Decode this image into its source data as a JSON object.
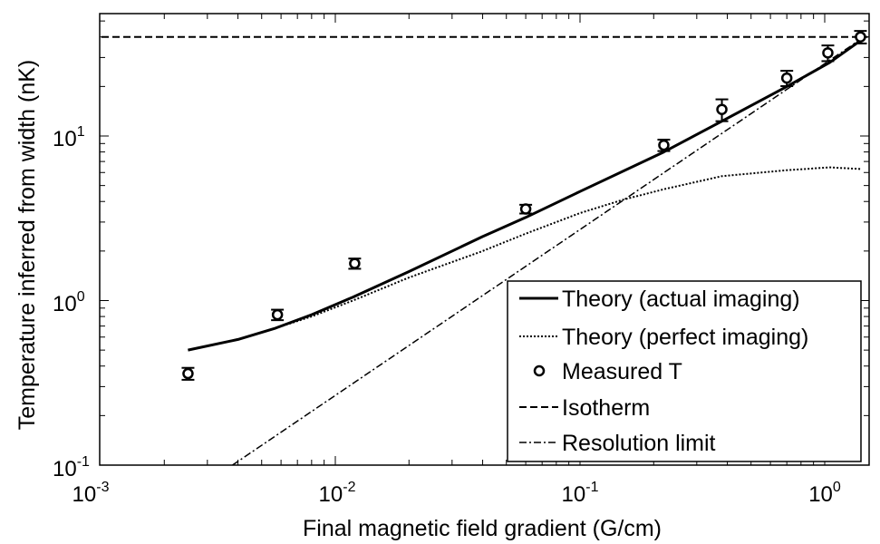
{
  "chart_data": {
    "type": "line",
    "xscale": "log",
    "yscale": "log",
    "xlim": [
      0.001,
      1.5
    ],
    "ylim": [
      0.1,
      45
    ],
    "xlabel": "Final magnetic field gradient (G/cm)",
    "ylabel": "Temperature inferred from width (nK)",
    "x_ticks": [
      {
        "base": "10",
        "exp": "-3",
        "value": 0.001
      },
      {
        "base": "10",
        "exp": "-2",
        "value": 0.01
      },
      {
        "base": "10",
        "exp": "-1",
        "value": 0.1
      },
      {
        "base": "10",
        "exp": "0",
        "value": 1
      }
    ],
    "y_ticks": [
      {
        "base": "10",
        "exp": "-1",
        "value": 0.1
      },
      {
        "base": "10",
        "exp": "0",
        "value": 1
      },
      {
        "base": "10",
        "exp": "1",
        "value": 10
      }
    ],
    "legend_position": "bottom-right",
    "series": [
      {
        "name": "Theory (actual imaging)",
        "style": "solid",
        "x": [
          0.0025,
          0.004,
          0.0057,
          0.008,
          0.0118,
          0.02,
          0.04,
          0.06,
          0.1,
          0.22,
          0.38,
          0.7,
          1.05,
          1.4
        ],
        "y": [
          0.5,
          0.58,
          0.68,
          0.82,
          1.05,
          1.5,
          2.45,
          3.2,
          4.6,
          8.0,
          12.3,
          20,
          28,
          38
        ]
      },
      {
        "name": "Theory (perfect imaging)",
        "style": "dotted",
        "x": [
          0.0057,
          0.008,
          0.0118,
          0.02,
          0.04,
          0.06,
          0.1,
          0.15,
          0.22,
          0.38,
          0.7,
          1.05,
          1.4
        ],
        "y": [
          0.68,
          0.8,
          1.0,
          1.38,
          2.0,
          2.55,
          3.4,
          4.1,
          4.75,
          5.7,
          6.2,
          6.45,
          6.3
        ]
      },
      {
        "name": "Measured T",
        "style": "markers",
        "x": [
          0.0025,
          0.0058,
          0.012,
          0.06,
          0.22,
          0.38,
          0.7,
          1.03,
          1.4
        ],
        "y": [
          0.36,
          0.82,
          1.68,
          3.6,
          8.8,
          14.5,
          22.5,
          32,
          40
        ],
        "err": [
          0.03,
          0.06,
          0.12,
          0.22,
          0.7,
          2.2,
          2.4,
          3.5,
          3.5
        ]
      },
      {
        "name": "Isotherm",
        "style": "dashed",
        "x": [
          0.001,
          1.5
        ],
        "y": [
          40,
          40
        ]
      },
      {
        "name": "Resolution limit",
        "style": "dashdot",
        "x": [
          0.0038,
          1.45
        ],
        "y": [
          0.1,
          40
        ]
      }
    ]
  }
}
